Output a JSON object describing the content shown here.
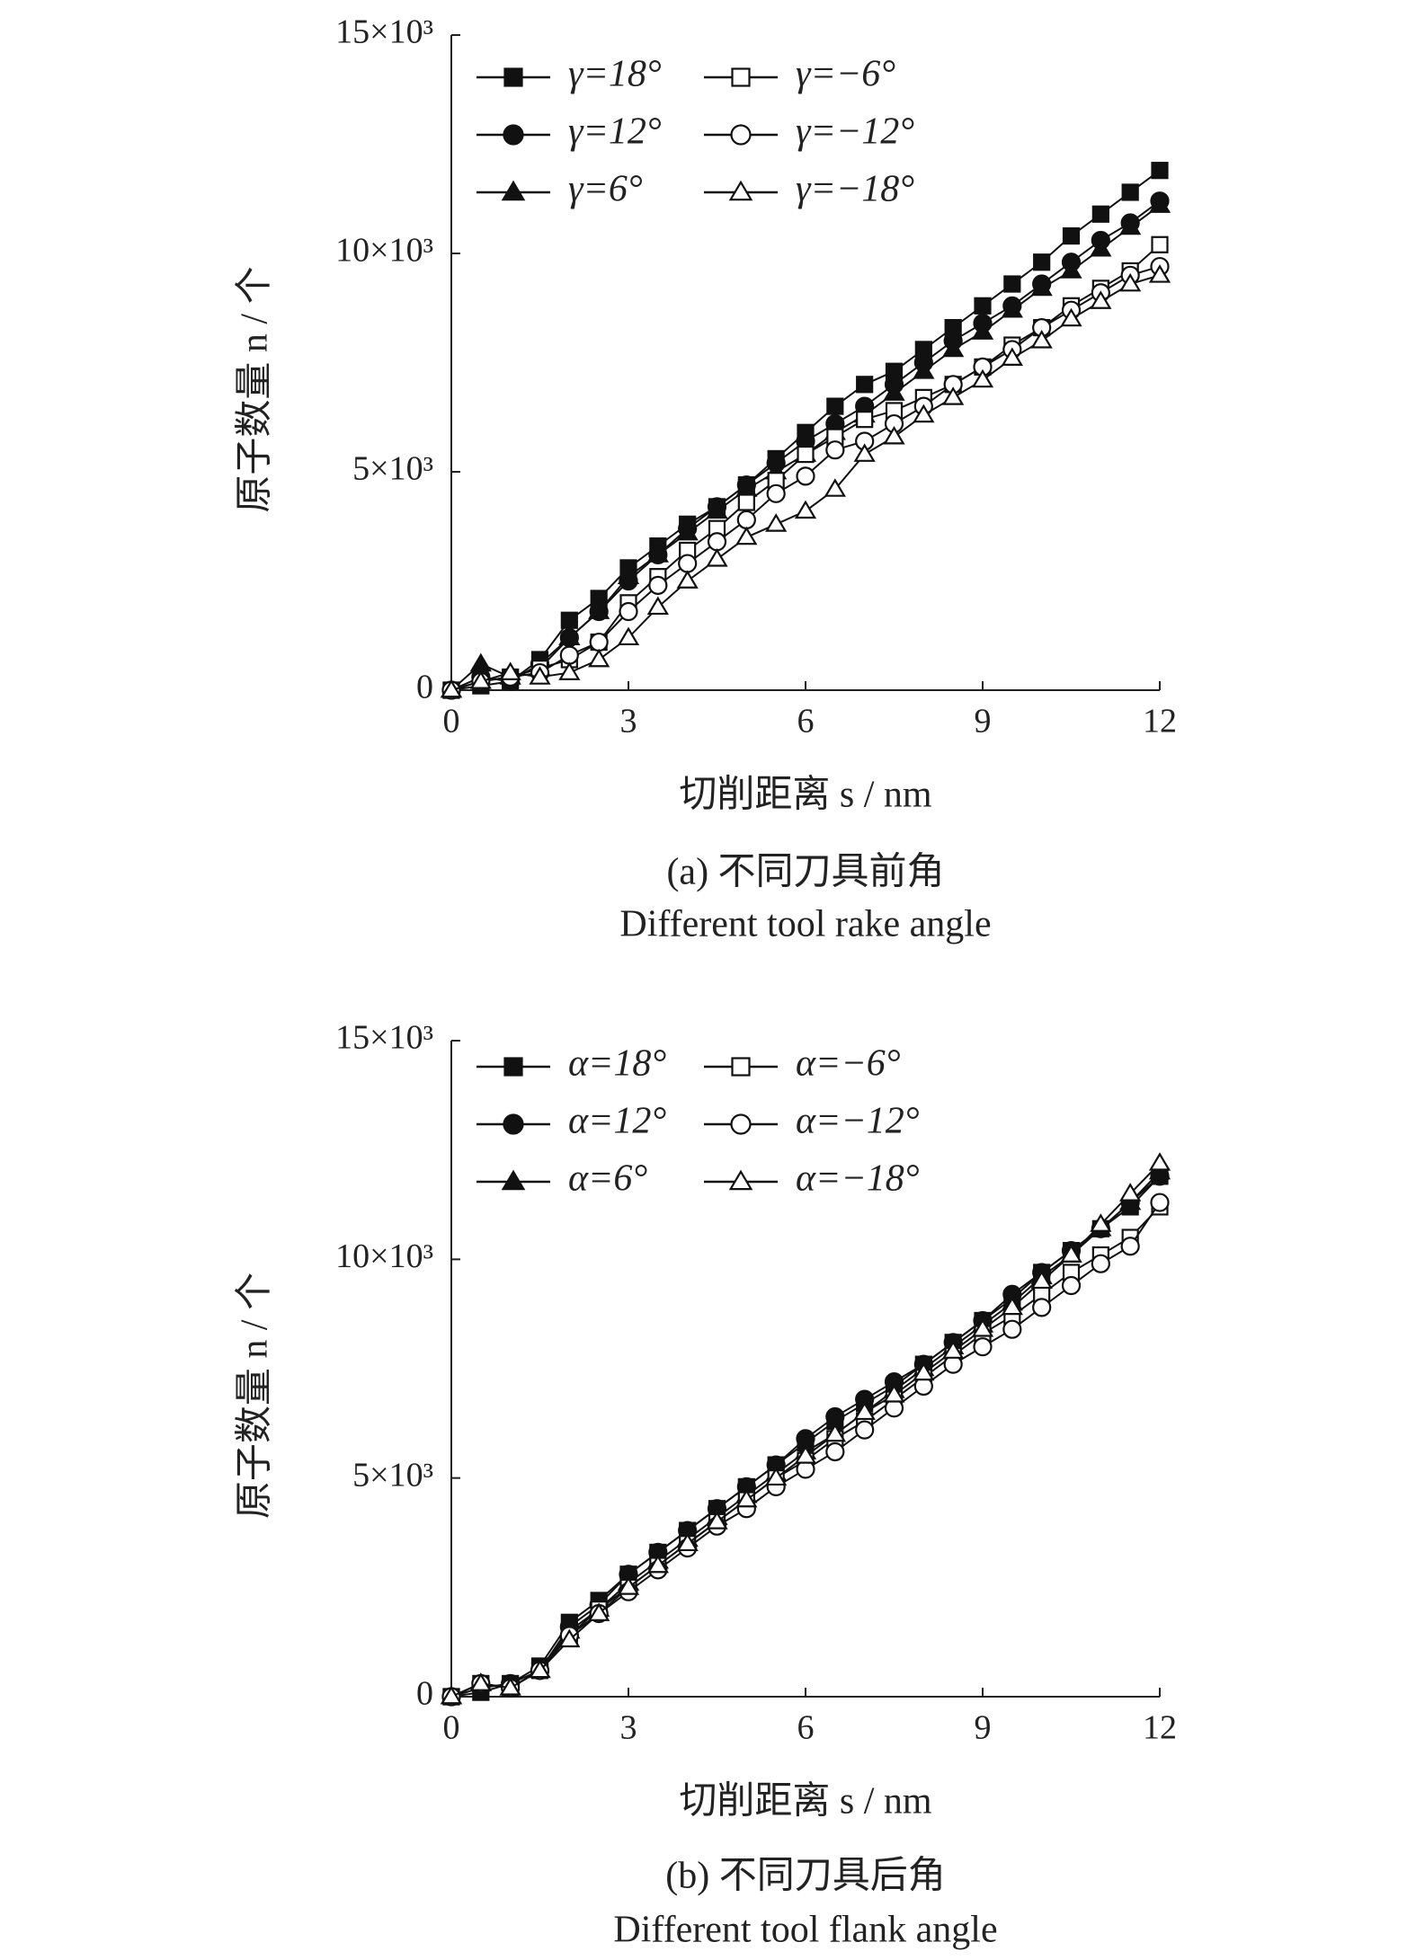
{
  "chart_data": [
    {
      "type": "line",
      "x_label": "切削距离 s / nm",
      "y_label": "原子数量 n / 个",
      "caption": "(a) 不同刀具前角",
      "caption_en": "Different tool rake angle",
      "x": [
        0,
        0.5,
        1,
        1.5,
        2,
        2.5,
        3,
        3.5,
        4,
        4.5,
        5,
        5.5,
        6,
        6.5,
        7,
        7.5,
        8,
        8.5,
        9,
        9.5,
        10,
        10.5,
        11,
        11.5,
        12
      ],
      "xlim": [
        0,
        12
      ],
      "xticks": [
        0,
        3,
        6,
        9,
        12
      ],
      "ylim": [
        0,
        15000
      ],
      "yticks": [
        {
          "value": 0,
          "label": "0"
        },
        {
          "value": 5000,
          "label": "5×10³"
        },
        {
          "value": 10000,
          "label": "10×10³"
        },
        {
          "value": 15000,
          "label": "15×10³"
        }
      ],
      "series": [
        {
          "name": "γ=18°",
          "color": "#111111",
          "marker": "square",
          "filled": true,
          "values": [
            0,
            100,
            200,
            700,
            1600,
            2100,
            2800,
            3300,
            3800,
            4200,
            4700,
            5300,
            5900,
            6500,
            7000,
            7300,
            7800,
            8300,
            8800,
            9300,
            9800,
            10400,
            10900,
            11400,
            11900
          ]
        },
        {
          "name": "γ=12°",
          "color": "#111111",
          "marker": "circle",
          "filled": true,
          "values": [
            0,
            300,
            200,
            600,
            1200,
            1800,
            2500,
            3100,
            3700,
            4200,
            4700,
            5200,
            5700,
            6100,
            6500,
            7000,
            7500,
            8000,
            8400,
            8800,
            9300,
            9800,
            10300,
            10700,
            11200
          ]
        },
        {
          "name": "γ=6°",
          "color": "#111111",
          "marker": "triangle",
          "filled": true,
          "values": [
            0,
            600,
            300,
            500,
            1200,
            1800,
            2600,
            3100,
            3600,
            4100,
            4600,
            5000,
            5400,
            5900,
            6300,
            6800,
            7300,
            7800,
            8200,
            8700,
            9200,
            9600,
            10100,
            10600,
            11100
          ]
        },
        {
          "name": "γ=−6°",
          "color": "#111111",
          "marker": "square",
          "filled": false,
          "values": [
            0,
            200,
            300,
            500,
            700,
            1100,
            2000,
            2600,
            3200,
            3700,
            4300,
            4800,
            5400,
            5800,
            6200,
            6400,
            6700,
            7000,
            7400,
            7900,
            8300,
            8800,
            9200,
            9600,
            10200
          ]
        },
        {
          "name": "γ=−12°",
          "color": "#111111",
          "marker": "circle",
          "filled": false,
          "values": [
            0,
            200,
            300,
            400,
            800,
            1100,
            1800,
            2400,
            2900,
            3400,
            3900,
            4500,
            4900,
            5500,
            5700,
            6100,
            6500,
            7000,
            7400,
            7800,
            8300,
            8700,
            9100,
            9500,
            9700
          ]
        },
        {
          "name": "γ=−18°",
          "color": "#111111",
          "marker": "triangle",
          "filled": false,
          "values": [
            0,
            200,
            400,
            300,
            400,
            700,
            1200,
            1900,
            2500,
            3000,
            3500,
            3800,
            4100,
            4600,
            5400,
            5800,
            6300,
            6700,
            7100,
            7600,
            8000,
            8500,
            8900,
            9300,
            9500
          ]
        }
      ]
    },
    {
      "type": "line",
      "x_label": "切削距离 s / nm",
      "y_label": "原子数量 n / 个",
      "caption": "(b) 不同刀具后角",
      "caption_en": "Different tool flank angle",
      "x": [
        0,
        0.5,
        1,
        1.5,
        2,
        2.5,
        3,
        3.5,
        4,
        4.5,
        5,
        5.5,
        6,
        6.5,
        7,
        7.5,
        8,
        8.5,
        9,
        9.5,
        10,
        10.5,
        11,
        11.5,
        12
      ],
      "xlim": [
        0,
        12
      ],
      "xticks": [
        0,
        3,
        6,
        9,
        12
      ],
      "ylim": [
        0,
        15000
      ],
      "yticks": [
        {
          "value": 0,
          "label": "0"
        },
        {
          "value": 5000,
          "label": "5×10³"
        },
        {
          "value": 10000,
          "label": "10×10³"
        },
        {
          "value": 15000,
          "label": "15×10³"
        }
      ],
      "series": [
        {
          "name": "α=18°",
          "color": "#111111",
          "marker": "square",
          "filled": true,
          "values": [
            0,
            100,
            300,
            700,
            1700,
            2200,
            2800,
            3300,
            3800,
            4300,
            4800,
            5300,
            5800,
            6300,
            6700,
            7100,
            7600,
            8100,
            8600,
            9100,
            9700,
            10200,
            10700,
            11200,
            11900
          ]
        },
        {
          "name": "α=12°",
          "color": "#111111",
          "marker": "circle",
          "filled": true,
          "values": [
            0,
            200,
            300,
            600,
            1600,
            2100,
            2800,
            3300,
            3800,
            4300,
            4800,
            5300,
            5900,
            6400,
            6800,
            7200,
            7600,
            8100,
            8600,
            9200,
            9700,
            10200,
            10700,
            11300,
            11900
          ]
        },
        {
          "name": "α=6°",
          "color": "#111111",
          "marker": "triangle",
          "filled": true,
          "values": [
            0,
            300,
            200,
            600,
            1500,
            2000,
            2600,
            3100,
            3600,
            4100,
            4600,
            5100,
            5600,
            6000,
            6500,
            7000,
            7500,
            8000,
            8500,
            9000,
            9600,
            10100,
            10700,
            11300,
            12000
          ]
        },
        {
          "name": "α=−6°",
          "color": "#111111",
          "marker": "square",
          "filled": false,
          "values": [
            0,
            300,
            200,
            600,
            1400,
            2000,
            2500,
            3000,
            3500,
            4000,
            4500,
            5000,
            5400,
            5900,
            6300,
            6800,
            7300,
            7800,
            8300,
            8700,
            9200,
            9700,
            10100,
            10500,
            11200
          ]
        },
        {
          "name": "α=−12°",
          "color": "#111111",
          "marker": "circle",
          "filled": false,
          "values": [
            0,
            300,
            200,
            600,
            1400,
            1900,
            2400,
            2900,
            3400,
            3900,
            4300,
            4800,
            5200,
            5600,
            6100,
            6600,
            7100,
            7600,
            8000,
            8400,
            8900,
            9400,
            9900,
            10300,
            11300
          ]
        },
        {
          "name": "α=−18°",
          "color": "#111111",
          "marker": "triangle",
          "filled": false,
          "values": [
            0,
            300,
            200,
            600,
            1300,
            1900,
            2500,
            3000,
            3500,
            4000,
            4500,
            5000,
            5500,
            6000,
            6500,
            6900,
            7400,
            7900,
            8400,
            8900,
            9500,
            10100,
            10800,
            11500,
            12200
          ]
        }
      ]
    }
  ]
}
